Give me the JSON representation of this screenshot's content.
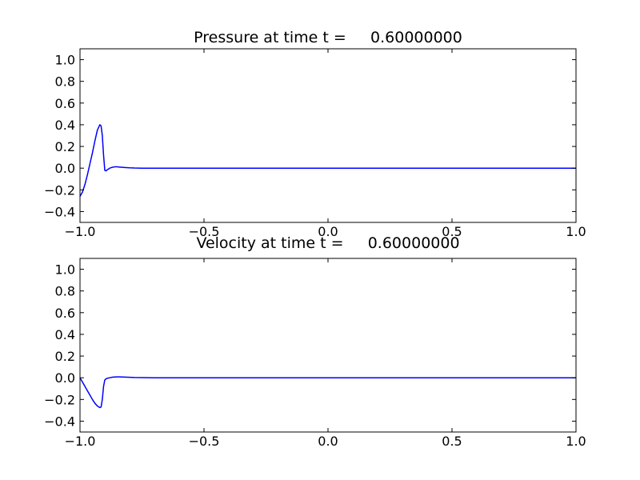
{
  "chart_data": [
    {
      "type": "line",
      "title": "Pressure at time t =     0.60000000",
      "xlim": [
        -1.0,
        1.0
      ],
      "ylim": [
        -0.5,
        1.1
      ],
      "xticks": [
        -1.0,
        -0.5,
        0.0,
        0.5,
        1.0
      ],
      "xtick_labels": [
        "−1.0",
        "−0.5",
        "0.0",
        "0.5",
        "1.0"
      ],
      "yticks": [
        -0.4,
        -0.2,
        0.0,
        0.2,
        0.4,
        0.6,
        0.8,
        1.0
      ],
      "ytick_labels": [
        "−0.4",
        "−0.2",
        "0.0",
        "0.2",
        "0.4",
        "0.6",
        "0.8",
        "1.0"
      ],
      "grid": false,
      "color": "#0000ff",
      "series": [
        {
          "x": [
            -1.0,
            -0.99,
            -0.98,
            -0.97,
            -0.96,
            -0.95,
            -0.94,
            -0.93,
            -0.92,
            -0.915,
            -0.91,
            -0.905,
            -0.9,
            -0.895,
            -0.89,
            -0.88,
            -0.87,
            -0.86,
            -0.85,
            -0.84,
            -0.82,
            -0.8,
            -0.78,
            -0.75,
            -0.7,
            -0.5,
            0.0,
            0.5,
            1.0
          ],
          "y": [
            -0.26,
            -0.22,
            -0.15,
            -0.06,
            0.04,
            0.14,
            0.25,
            0.35,
            0.4,
            0.39,
            0.3,
            0.12,
            -0.02,
            -0.025,
            -0.015,
            0.0,
            0.008,
            0.012,
            0.012,
            0.01,
            0.006,
            0.003,
            0.001,
            0.0,
            0.0,
            0.0,
            0.0,
            0.0,
            0.0
          ]
        }
      ]
    },
    {
      "type": "line",
      "title": "Velocity at time t =     0.60000000",
      "xlim": [
        -1.0,
        1.0
      ],
      "ylim": [
        -0.5,
        1.1
      ],
      "xticks": [
        -1.0,
        -0.5,
        0.0,
        0.5,
        1.0
      ],
      "xtick_labels": [
        "−1.0",
        "−0.5",
        "0.0",
        "0.5",
        "1.0"
      ],
      "yticks": [
        -0.4,
        -0.2,
        0.0,
        0.2,
        0.4,
        0.6,
        0.8,
        1.0
      ],
      "ytick_labels": [
        "−0.4",
        "−0.2",
        "0.0",
        "0.2",
        "0.4",
        "0.6",
        "0.8",
        "1.0"
      ],
      "grid": false,
      "color": "#0000ff",
      "series": [
        {
          "x": [
            -1.0,
            -0.99,
            -0.98,
            -0.97,
            -0.96,
            -0.95,
            -0.94,
            -0.93,
            -0.92,
            -0.915,
            -0.91,
            -0.905,
            -0.9,
            -0.895,
            -0.89,
            -0.88,
            -0.87,
            -0.86,
            -0.85,
            -0.84,
            -0.82,
            -0.8,
            -0.78,
            -0.75,
            -0.7,
            -0.5,
            0.0,
            0.5,
            1.0
          ],
          "y": [
            0.0,
            -0.04,
            -0.08,
            -0.12,
            -0.16,
            -0.2,
            -0.235,
            -0.26,
            -0.275,
            -0.27,
            -0.2,
            -0.08,
            -0.02,
            -0.01,
            -0.005,
            0.0,
            0.005,
            0.007,
            0.008,
            0.008,
            0.006,
            0.004,
            0.002,
            0.001,
            0.0,
            0.0,
            0.0,
            0.0,
            0.0
          ]
        }
      ]
    }
  ]
}
